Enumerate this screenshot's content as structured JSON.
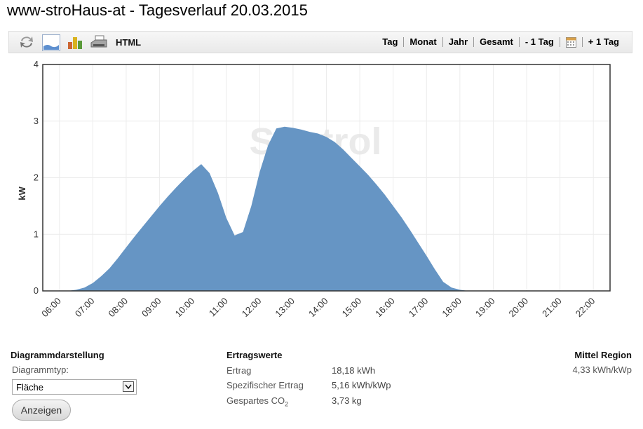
{
  "page_title": "www-stroHaus-at - Tagesverlauf 20.03.2015",
  "toolbar": {
    "icons": [
      "refresh-icon",
      "area-chart-icon",
      "bar-chart-icon",
      "print-icon"
    ],
    "html_label": "HTML",
    "nav": {
      "tag": "Tag",
      "monat": "Monat",
      "jahr": "Jahr",
      "gesamt": "Gesamt",
      "prev_day": "- 1 Tag",
      "next_day": "+ 1 Tag"
    }
  },
  "watermark": "Suntrol",
  "chart_data": {
    "type": "area",
    "ylabel": "kW",
    "ylim": [
      0,
      4
    ],
    "yticks": [
      "0",
      "1",
      "2",
      "3",
      "4"
    ],
    "xticks": [
      "06:00",
      "07:00",
      "08:00",
      "09:00",
      "10:00",
      "11:00",
      "12:00",
      "13:00",
      "14:00",
      "15:00",
      "16:00",
      "17:00",
      "18:00",
      "19:00",
      "20:00",
      "21:00",
      "22:00"
    ],
    "xlim": [
      "05:30",
      "22:30"
    ],
    "color": "#6695c4",
    "grid": true,
    "x": [
      "06:15",
      "06:30",
      "06:45",
      "07:00",
      "07:15",
      "07:30",
      "07:45",
      "08:00",
      "08:15",
      "08:30",
      "08:45",
      "09:00",
      "09:15",
      "09:30",
      "09:45",
      "10:00",
      "10:15",
      "10:30",
      "10:45",
      "11:00",
      "11:15",
      "11:30",
      "11:45",
      "12:00",
      "12:15",
      "12:30",
      "12:45",
      "13:00",
      "13:15",
      "13:30",
      "13:45",
      "14:00",
      "14:15",
      "14:30",
      "14:45",
      "15:00",
      "15:15",
      "15:30",
      "15:45",
      "16:00",
      "16:15",
      "16:30",
      "16:45",
      "17:00",
      "17:15",
      "17:30",
      "17:45",
      "18:00",
      "18:15",
      "18:30"
    ],
    "values": [
      0.0,
      0.02,
      0.06,
      0.14,
      0.26,
      0.4,
      0.58,
      0.77,
      0.96,
      1.14,
      1.32,
      1.5,
      1.67,
      1.83,
      1.98,
      2.12,
      2.24,
      2.08,
      1.73,
      1.29,
      0.98,
      1.04,
      1.5,
      2.1,
      2.57,
      2.87,
      2.9,
      2.88,
      2.85,
      2.81,
      2.78,
      2.72,
      2.63,
      2.5,
      2.35,
      2.2,
      2.05,
      1.88,
      1.7,
      1.5,
      1.3,
      1.08,
      0.85,
      0.62,
      0.38,
      0.16,
      0.06,
      0.02,
      0.0,
      0.0
    ]
  },
  "diagramm": {
    "heading": "Diagrammdarstellung",
    "type_label": "Diagrammtyp:",
    "type_value": "Fläche",
    "button": "Anzeigen"
  },
  "ertrag": {
    "heading": "Ertragswerte",
    "rows": [
      {
        "label": "Ertrag",
        "value": "18,18 kWh"
      },
      {
        "label": "Spezifischer Ertrag",
        "value": "5,16 kWh/kWp"
      },
      {
        "label": "Gespartes CO",
        "sub": "2",
        "value": "3,73 kg"
      }
    ]
  },
  "region": {
    "heading": "Mittel Region",
    "value": "4,33 kWh/kWp"
  }
}
